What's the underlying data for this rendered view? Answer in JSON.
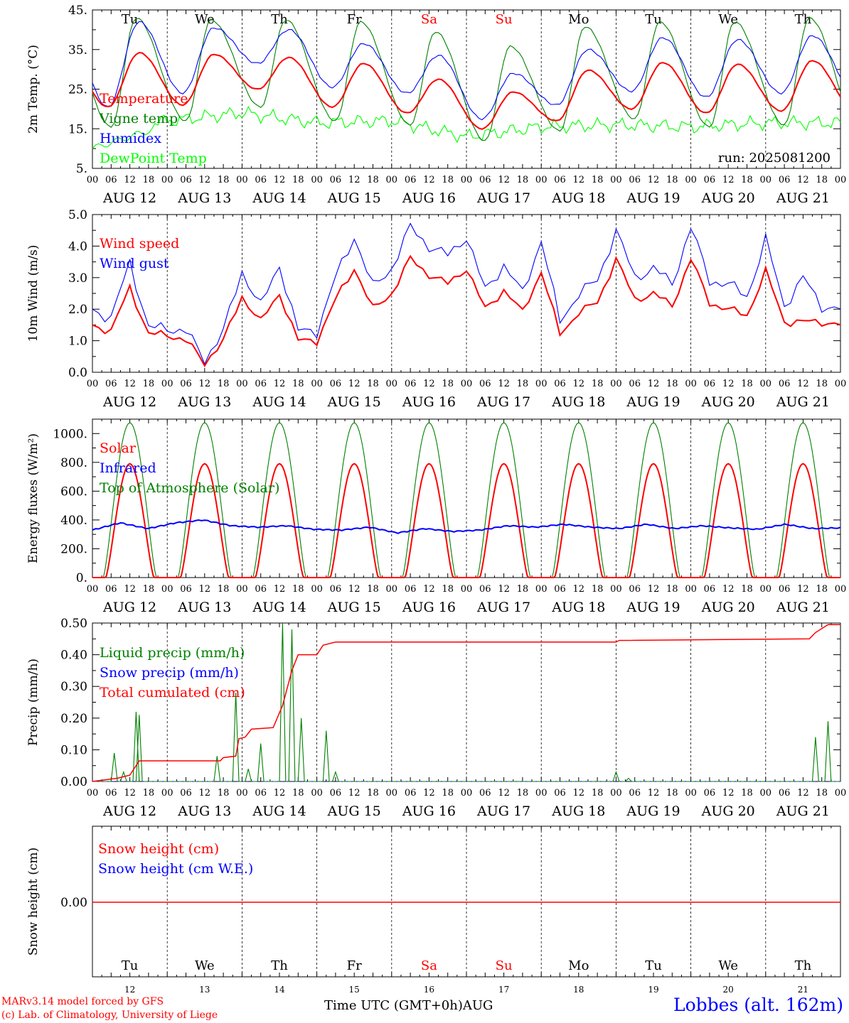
{
  "chart_data": [
    {
      "type": "line",
      "ylabel": "2m Temp. (°C)",
      "ylim": [
        5,
        45
      ],
      "ytick_labels": [
        "5.",
        "15.",
        "25.",
        "35.",
        "45."
      ],
      "run_label": "run: 2025081200",
      "series": [
        {
          "name": "Temperature",
          "color": "#ff0000"
        },
        {
          "name": "Vigne temp",
          "color": "#008000"
        },
        {
          "name": "Humidex",
          "color": "#0000ff"
        },
        {
          "name": "DewPoint Temp",
          "color": "#00ff00"
        }
      ],
      "daily": {
        "temperature_min": [
          20.5,
          21,
          25,
          20.5,
          19,
          15,
          17,
          20,
          19,
          19.5
        ],
        "temperature_max": [
          34.2,
          33.8,
          33,
          31.5,
          27.5,
          24.3,
          29.8,
          31.7,
          31.3,
          32.2
        ],
        "vigne_min": [
          15.5,
          17,
          20.5,
          17,
          16,
          12,
          14.5,
          17.5,
          15.5,
          16
        ],
        "vigne_max": [
          43,
          42.5,
          42.5,
          42,
          39.5,
          35.8,
          40.8,
          42,
          42,
          43
        ],
        "humidex_min": [
          20.5,
          24,
          31.5,
          25.5,
          24,
          17.5,
          21,
          24.5,
          23,
          24
        ],
        "humidex_max": [
          42,
          40.5,
          40,
          36.5,
          33.5,
          29,
          35,
          38,
          37.5,
          38.5
        ],
        "dewpoint_mean": [
          14,
          17,
          19,
          16.5,
          17,
          13,
          15.5,
          16,
          15.5,
          16.5
        ]
      }
    },
    {
      "type": "line",
      "ylabel": "10m Wind (m/s)",
      "ylim": [
        0,
        5
      ],
      "ytick_labels": [
        "0.0",
        "1.0",
        "2.0",
        "3.0",
        "4.0",
        "5.0"
      ],
      "series": [
        {
          "name": "Wind speed",
          "color": "#ff0000"
        },
        {
          "name": "Wind gust",
          "color": "#0000ff"
        }
      ],
      "x_hours": [
        0,
        6,
        12,
        18,
        24,
        30,
        36,
        42,
        48,
        54,
        60,
        66,
        72,
        78,
        84,
        90,
        96,
        102,
        108,
        114,
        120,
        126,
        132,
        138,
        144,
        150,
        156,
        162,
        168,
        174,
        180,
        186,
        192,
        198,
        204,
        210,
        216,
        222,
        228,
        234,
        240
      ],
      "wind_speed": [
        1.5,
        1.3,
        2.7,
        1.2,
        1.2,
        1.0,
        0.3,
        1.0,
        2.4,
        1.6,
        2.5,
        1.0,
        1.0,
        2.3,
        3.3,
        2.0,
        2.5,
        3.6,
        3.1,
        2.8,
        3.3,
        2.0,
        2.6,
        1.9,
        3.2,
        1.2,
        1.9,
        2.2,
        3.6,
        2.3,
        2.5,
        2.1,
        3.6,
        2.2,
        2.0,
        1.8,
        3.2,
        1.6,
        1.6,
        1.6,
        1.5
      ],
      "wind_gust": [
        2.0,
        1.7,
        3.5,
        1.4,
        1.4,
        1.3,
        0.4,
        1.3,
        3.2,
        2.1,
        3.4,
        1.3,
        1.3,
        3.0,
        4.3,
        2.7,
        3.3,
        4.6,
        4.0,
        3.7,
        4.3,
        2.6,
        3.4,
        2.5,
        4.2,
        1.6,
        2.5,
        2.9,
        4.5,
        3.0,
        3.3,
        2.8,
        4.6,
        2.9,
        2.8,
        2.4,
        4.2,
        2.1,
        3.0,
        2.1,
        2.0
      ]
    },
    {
      "type": "line",
      "ylabel": "Energy fluxes (W/m²)",
      "ylim": [
        0,
        1100
      ],
      "ytick_labels": [
        "0.",
        "200.",
        "400.",
        "600.",
        "800.",
        "1000."
      ],
      "series": [
        {
          "name": "Solar",
          "color": "#ff0000"
        },
        {
          "name": "Infrared",
          "color": "#0000ff"
        },
        {
          "name": "Top of Atmosphere (Solar)",
          "color": "#008000"
        }
      ],
      "solar_peak": 790,
      "toa_peak": 1075,
      "infrared": [
        330,
        380,
        340,
        380,
        400,
        360,
        350,
        360,
        335,
        330,
        350,
        310,
        340,
        320,
        330,
        360,
        350,
        370,
        350,
        340,
        370,
        340,
        360,
        345,
        335,
        370,
        340,
        345
      ]
    },
    {
      "type": "line",
      "ylabel": "Precip (mm/h)",
      "ylim": [
        0,
        0.5
      ],
      "ytick_labels": [
        "0.00",
        "0.10",
        "0.20",
        "0.30",
        "0.40",
        "0.50"
      ],
      "series": [
        {
          "name": "Liquid precip (mm/h)",
          "color": "#008000"
        },
        {
          "name": "Snow precip (mm/h)",
          "color": "#0000ff"
        },
        {
          "name": "Total cumulated (cm)",
          "color": "#ff0000"
        }
      ],
      "liquid_events": [
        {
          "hour": 7,
          "value": 0.09
        },
        {
          "hour": 10,
          "value": 0.03
        },
        {
          "hour": 14,
          "value": 0.22
        },
        {
          "hour": 15,
          "value": 0.21
        },
        {
          "hour": 40,
          "value": 0.08
        },
        {
          "hour": 46,
          "value": 0.28
        },
        {
          "hour": 50,
          "value": 0.04
        },
        {
          "hour": 54,
          "value": 0.12
        },
        {
          "hour": 61,
          "value": 0.5
        },
        {
          "hour": 64,
          "value": 0.48
        },
        {
          "hour": 67,
          "value": 0.2
        },
        {
          "hour": 75,
          "value": 0.16
        },
        {
          "hour": 78,
          "value": 0.03
        },
        {
          "hour": 168,
          "value": 0.03
        },
        {
          "hour": 172,
          "value": 0.01
        },
        {
          "hour": 232,
          "value": 0.14
        },
        {
          "hour": 236,
          "value": 0.19
        }
      ],
      "cumulated_steps": [
        {
          "hour": 0,
          "value": 0.0
        },
        {
          "hour": 8,
          "value": 0.01
        },
        {
          "hour": 12,
          "value": 0.02
        },
        {
          "hour": 15,
          "value": 0.065
        },
        {
          "hour": 41,
          "value": 0.065
        },
        {
          "hour": 42,
          "value": 0.075
        },
        {
          "hour": 46,
          "value": 0.08
        },
        {
          "hour": 47,
          "value": 0.135
        },
        {
          "hour": 49,
          "value": 0.14
        },
        {
          "hour": 51,
          "value": 0.165
        },
        {
          "hour": 58,
          "value": 0.17
        },
        {
          "hour": 61,
          "value": 0.24
        },
        {
          "hour": 64,
          "value": 0.35
        },
        {
          "hour": 66,
          "value": 0.4
        },
        {
          "hour": 72,
          "value": 0.4
        },
        {
          "hour": 74,
          "value": 0.43
        },
        {
          "hour": 78,
          "value": 0.44
        },
        {
          "hour": 168,
          "value": 0.44
        },
        {
          "hour": 169,
          "value": 0.445
        },
        {
          "hour": 230,
          "value": 0.45
        },
        {
          "hour": 232,
          "value": 0.47
        },
        {
          "hour": 236,
          "value": 0.495
        },
        {
          "hour": 240,
          "value": 0.495
        }
      ]
    },
    {
      "type": "line",
      "ylabel": "Snow height (cm)",
      "ytick_labels": [
        "0.00"
      ],
      "series": [
        {
          "name": "Snow height (cm)",
          "color": "#ff0000"
        },
        {
          "name": "Snow height (cm W.E.)",
          "color": "#0000ff"
        }
      ],
      "value": 0
    }
  ],
  "days": [
    {
      "abbr": "Tu",
      "date": "AUG 12",
      "num": "12",
      "color": "#000000"
    },
    {
      "abbr": "We",
      "date": "AUG 13",
      "num": "13",
      "color": "#000000"
    },
    {
      "abbr": "Th",
      "date": "AUG 14",
      "num": "14",
      "color": "#000000"
    },
    {
      "abbr": "Fr",
      "date": "AUG 15",
      "num": "15",
      "color": "#000000"
    },
    {
      "abbr": "Sa",
      "date": "AUG 16",
      "num": "16",
      "color": "#ff0000"
    },
    {
      "abbr": "Su",
      "date": "AUG 17",
      "num": "17",
      "color": "#ff0000"
    },
    {
      "abbr": "Mo",
      "date": "AUG 18",
      "num": "18",
      "color": "#000000"
    },
    {
      "abbr": "Tu",
      "date": "AUG 19",
      "num": "19",
      "color": "#000000"
    },
    {
      "abbr": "We",
      "date": "AUG 20",
      "num": "20",
      "color": "#000000"
    },
    {
      "abbr": "Th",
      "date": "AUG 21",
      "num": "21",
      "color": "#000000"
    }
  ],
  "hour_labels": [
    "00",
    "06",
    "12",
    "18"
  ],
  "final_hour_label": "00",
  "footer": {
    "model": "MARv3.14 model forced by GFS",
    "credit": "(c) Lab. of Climatology, University of Liege",
    "xaxis_title": "Time UTC (GMT+0h)",
    "month": "AUG",
    "location": "Lobbes (alt. 162m)"
  }
}
